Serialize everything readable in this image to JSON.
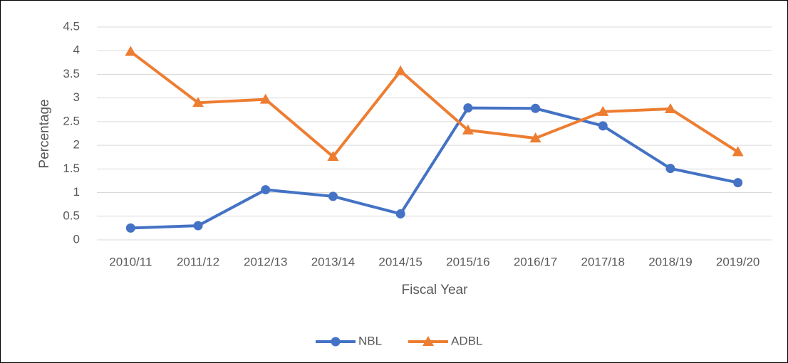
{
  "chart_data": {
    "type": "line",
    "categories": [
      "2010/11",
      "2011/12",
      "2012/13",
      "2013/14",
      "2014/15",
      "2015/16",
      "2016/17",
      "2017/18",
      "2018/19",
      "2019/20"
    ],
    "series": [
      {
        "name": "NBL",
        "color": "#4472c4",
        "marker": "circle",
        "values": [
          0.25,
          0.3,
          1.06,
          0.92,
          0.55,
          2.79,
          2.78,
          2.41,
          1.51,
          1.21
        ]
      },
      {
        "name": "ADBL",
        "color": "#ed7d31",
        "marker": "triangle",
        "values": [
          3.98,
          2.9,
          2.97,
          1.76,
          3.57,
          2.32,
          2.15,
          2.71,
          2.77,
          1.86
        ]
      }
    ],
    "ylim": [
      0,
      4.5
    ],
    "yticks": [
      0,
      0.5,
      1,
      1.5,
      2,
      2.5,
      3,
      3.5,
      4,
      4.5
    ],
    "xlabel": "Fiscal Year",
    "ylabel": "Percentage",
    "grid": true,
    "legend": "bottom"
  }
}
